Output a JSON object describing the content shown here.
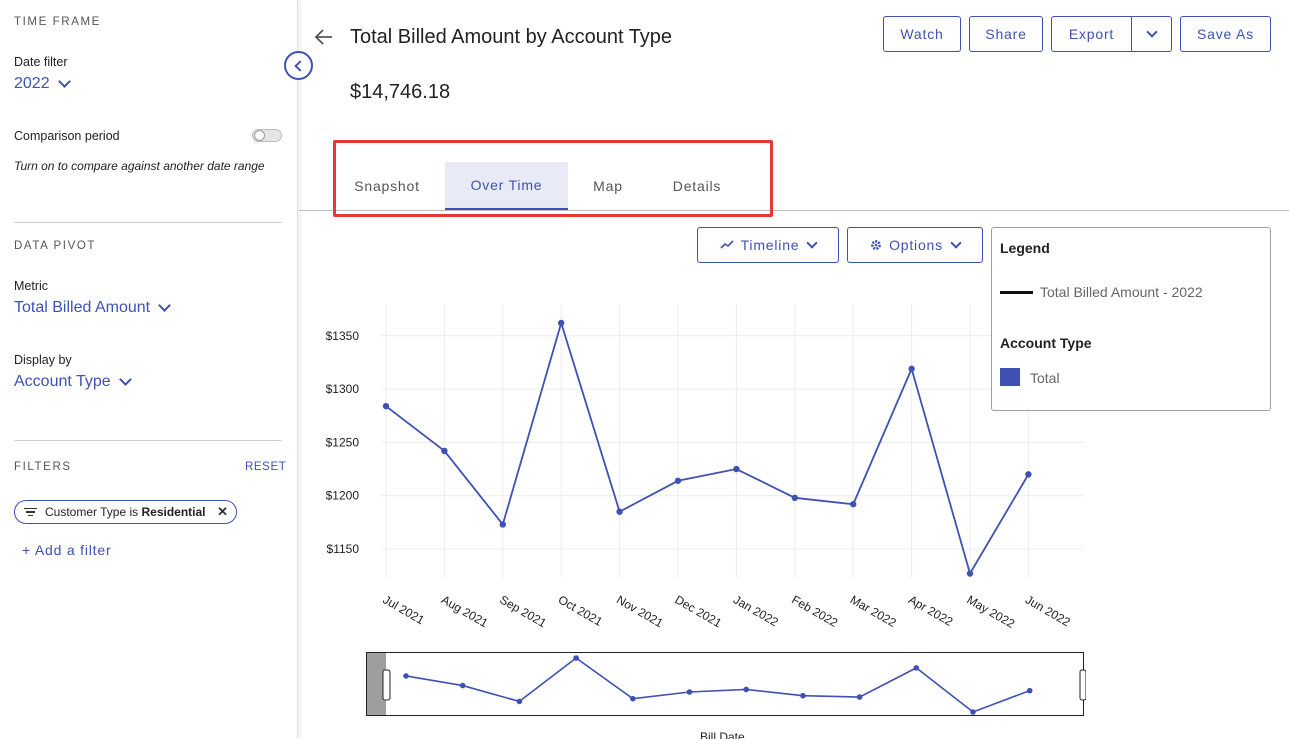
{
  "sidebar": {
    "time_frame_title": "TIME FRAME",
    "date_filter_label": "Date filter",
    "date_filter_value": "2022",
    "comparison_label": "Comparison period",
    "comparison_hint": "Turn on to compare against another date range",
    "comparison_enabled": false,
    "data_pivot_title": "DATA PIVOT",
    "metric_label": "Metric",
    "metric_value": "Total Billed Amount",
    "display_by_label": "Display by",
    "display_by_value": "Account Type",
    "filters_title": "FILTERS",
    "reset_label": "RESET",
    "filter_chip_prefix": "Customer Type is",
    "filter_chip_value": "Residential",
    "add_filter_label": "+ Add a filter"
  },
  "header": {
    "title": "Total Billed Amount by Account Type",
    "total_value": "$14,746.18",
    "buttons": {
      "watch": "Watch",
      "share": "Share",
      "export": "Export",
      "save_as": "Save As"
    }
  },
  "tabs": [
    {
      "label": "Snapshot",
      "active": false
    },
    {
      "label": "Over Time",
      "active": true
    },
    {
      "label": "Map",
      "active": false
    },
    {
      "label": "Details",
      "active": false
    }
  ],
  "controls": {
    "timeline_label": "Timeline",
    "options_label": "Options"
  },
  "legend": {
    "title": "Legend",
    "series_label": "Total Billed Amount - 2022",
    "subtitle": "Account Type",
    "item_label": "Total",
    "item_color": "#3f51b5"
  },
  "colors": {
    "accent": "#3f51b5",
    "highlight": "#e53935"
  },
  "chart_data": {
    "type": "line",
    "categories": [
      "Jul 2021",
      "Aug 2021",
      "Sep 2021",
      "Oct 2021",
      "Nov 2021",
      "Dec 2021",
      "Jan 2022",
      "Feb 2022",
      "Mar 2022",
      "Apr 2022",
      "May 2022",
      "Jun 2022"
    ],
    "series": [
      {
        "values": [
          1284,
          1242,
          1173,
          1362,
          1185,
          1214,
          1225,
          1198,
          1192,
          1319,
          1127,
          1220
        ]
      }
    ],
    "yticks": [
      "$1150",
      "$1200",
      "$1250",
      "$1300",
      "$1350"
    ],
    "ytick_values": [
      1150,
      1200,
      1250,
      1300,
      1350
    ],
    "xlabel": "Bill Date",
    "grid": true,
    "legend_position": "top-right",
    "line_color": "#3f51b5"
  }
}
